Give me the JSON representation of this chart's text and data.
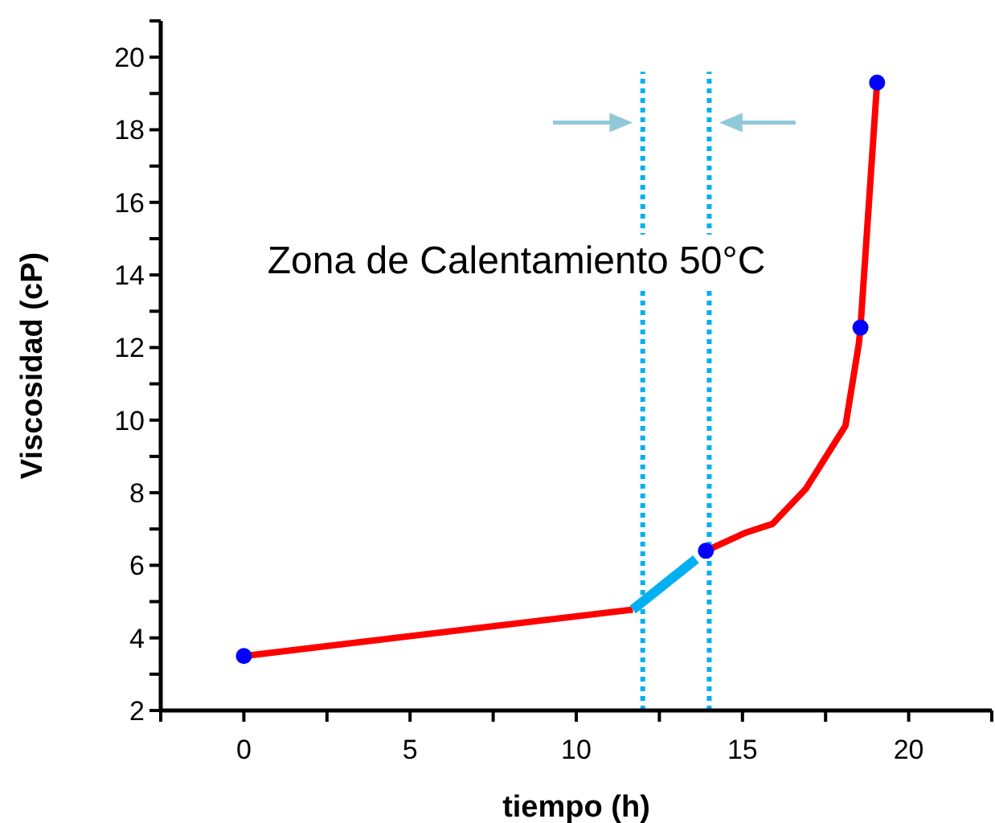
{
  "chart_data": {
    "type": "line",
    "xlabel": "tiempo (h)",
    "ylabel": "Viscosidad (cP)",
    "xlim": [
      -2.5,
      22.5
    ],
    "ylim": [
      2,
      21
    ],
    "xticks": [
      {
        "value": -2.5,
        "label": null
      },
      0,
      {
        "value": 2.5,
        "label": null
      },
      5,
      {
        "value": 7.5,
        "label": null
      },
      10,
      {
        "value": 12.5,
        "label": null
      },
      15,
      {
        "value": 17.5,
        "label": null
      },
      20,
      {
        "value": 22.5,
        "label": null
      }
    ],
    "yticks": [
      2,
      {
        "value": 3,
        "label": null
      },
      4,
      {
        "value": 5,
        "label": null
      },
      6,
      {
        "value": 7,
        "label": null
      },
      8,
      {
        "value": 9,
        "label": null
      },
      10,
      {
        "value": 11,
        "label": null
      },
      12,
      {
        "value": 13,
        "label": null
      },
      14,
      {
        "value": 15,
        "label": null
      },
      16,
      {
        "value": 17,
        "label": null
      },
      18,
      {
        "value": 19,
        "label": null
      },
      20,
      {
        "value": 21,
        "label": null
      }
    ],
    "series": [
      {
        "color": "#ff0000",
        "x": [
          0,
          11.7,
          13.6,
          13.9,
          15.1,
          15.9,
          16.9,
          18.1,
          18.5,
          18.55,
          19.05
        ],
        "values": [
          3.5,
          4.78,
          null,
          6.4,
          6.9,
          7.14,
          8.1,
          9.85,
          12.1,
          12.55,
          19.3
        ]
      },
      {
        "color": "#00b0f0",
        "x": [
          11.7,
          13.6
        ],
        "values": [
          4.78,
          6.17
        ]
      },
      {
        "type": "scatter",
        "color": "#0000ff",
        "marker": "circle",
        "x": [
          0,
          13.9,
          18.55,
          19.05
        ],
        "values": [
          3.5,
          6.4,
          12.55,
          19.3
        ]
      }
    ],
    "ref_lines": [
      {
        "axis": "x",
        "value": 12,
        "color": "#00b0f0",
        "line_style": "dotted"
      },
      {
        "axis": "x",
        "value": 14,
        "color": "#00b0f0",
        "line_style": "dotted"
      }
    ],
    "annotations": [
      "Zona de Calentamiento 50°C"
    ],
    "grid": false
  }
}
